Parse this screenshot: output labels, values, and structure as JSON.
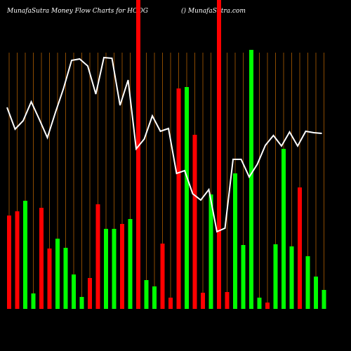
{
  "chart_data": {
    "type": "bar",
    "title": "MunafaSutra  Money  Flow  Charts for HOOG",
    "subtitle": "() MunafaSutra.com",
    "values": [
      133,
      139,
      154,
      22,
      144,
      86,
      100,
      87,
      49,
      17,
      44,
      149,
      114,
      114,
      121,
      128,
      440,
      41,
      32,
      93,
      16,
      314,
      316,
      248,
      23,
      163,
      440,
      24,
      193,
      91,
      369,
      16,
      9,
      92,
      228,
      89,
      173,
      75,
      46,
      27
    ],
    "colors": [
      "#ff0000",
      "#ff0000",
      "#00ff00",
      "#00ff00",
      "#ff0000",
      "#ff0000",
      "#00ff00",
      "#00ff00",
      "#00ff00",
      "#00ff00",
      "#ff0000",
      "#ff0000",
      "#00ff00",
      "#00ff00",
      "#ff0000",
      "#00ff00",
      "#ff0000",
      "#00ff00",
      "#00ff00",
      "#ff0000",
      "#ff0000",
      "#ff0000",
      "#00ff00",
      "#ff0000",
      "#ff0000",
      "#00ff00",
      "#ff0000",
      "#ff0000",
      "#00ff00",
      "#00ff00",
      "#00ff00",
      "#00ff00",
      "#ff0000",
      "#00ff00",
      "#00ff00",
      "#00ff00",
      "#ff0000",
      "#00ff00",
      "#00ff00",
      "#00ff00"
    ],
    "ylim": [
      0,
      440
    ],
    "line": {
      "color": "#ffffff",
      "values": [
        287,
        256,
        268,
        295,
        270,
        244,
        280,
        314,
        354,
        356,
        346,
        306,
        358,
        357,
        290,
        326,
        228,
        242,
        275,
        253,
        257,
        193,
        197,
        164,
        155,
        170,
        110,
        115,
        213,
        213,
        188,
        206,
        233,
        247,
        232,
        252,
        232,
        253,
        251,
        250
      ]
    },
    "y2lim": [
      0,
      440
    ],
    "grid_color": "#8a4a00"
  }
}
